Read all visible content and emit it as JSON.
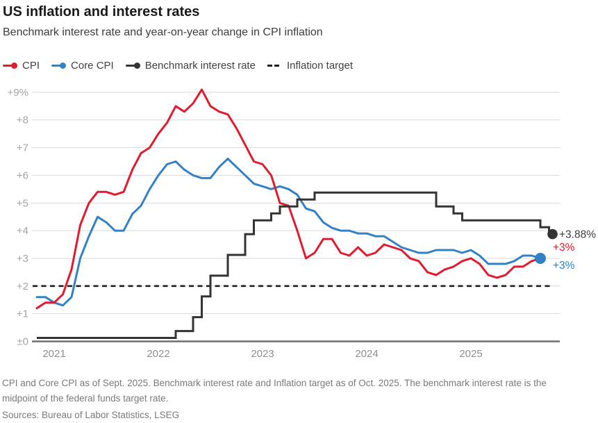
{
  "header": {
    "title": "US inflation and interest rates",
    "subtitle": "Benchmark interest rate and year-on-year change in CPI inflation"
  },
  "legend": [
    {
      "label": "CPI",
      "color": "#e11b2d",
      "marker": "line-dot"
    },
    {
      "label": "Core CPI",
      "color": "#3181c4",
      "marker": "line-dot"
    },
    {
      "label": "Benchmark interest rate",
      "color": "#333333",
      "marker": "line-dot"
    },
    {
      "label": "Inflation target",
      "color": "#1f1f1f",
      "marker": "dashes"
    }
  ],
  "chart_data": {
    "type": "line",
    "title": "US inflation and interest rates",
    "subtitle": "Benchmark interest rate and year-on-year change in CPI inflation",
    "x_start": "2020-11",
    "x_unit": "month",
    "start_offset_months": -2,
    "grid": true,
    "ylim": [
      0,
      9
    ],
    "target_value": 2,
    "colors": {
      "cpi": "#e11b2d",
      "core_cpi": "#3181c4",
      "benchmark": "#333333",
      "target": "#1f1f1f",
      "grid": "#d9d9d9",
      "axis": "#6e6e6e",
      "end_label_benchmark": "#3d3d3d"
    },
    "yticks": [
      {
        "v": 0,
        "label": "±0"
      },
      {
        "v": 1,
        "label": "+1"
      },
      {
        "v": 2,
        "label": "+2"
      },
      {
        "v": 3,
        "label": "+3"
      },
      {
        "v": 4,
        "label": "+4"
      },
      {
        "v": 5,
        "label": "+5"
      },
      {
        "v": 6,
        "label": "+6"
      },
      {
        "v": 7,
        "label": "+7"
      },
      {
        "v": 8,
        "label": "+8"
      },
      {
        "v": 9,
        "label": "+9%"
      }
    ],
    "xticks": [
      {
        "label": "2021",
        "t": 0
      },
      {
        "label": "2022",
        "t": 12
      },
      {
        "label": "2023",
        "t": 24
      },
      {
        "label": "2024",
        "t": 36
      },
      {
        "label": "2025",
        "t": 48
      }
    ],
    "series": [
      {
        "name": "CPI",
        "style": "line",
        "color": "#e11b2d",
        "end_label": "+3%",
        "end_dot": false,
        "values": [
          1.2,
          1.4,
          1.4,
          1.7,
          2.6,
          4.2,
          5.0,
          5.4,
          5.4,
          5.3,
          5.4,
          6.2,
          6.8,
          7.0,
          7.5,
          7.9,
          8.5,
          8.3,
          8.6,
          9.1,
          8.5,
          8.3,
          8.2,
          7.7,
          7.1,
          6.5,
          6.4,
          6.0,
          5.0,
          4.9,
          4.0,
          3.0,
          3.2,
          3.7,
          3.7,
          3.2,
          3.1,
          3.4,
          3.1,
          3.2,
          3.5,
          3.4,
          3.3,
          3.0,
          2.9,
          2.5,
          2.4,
          2.6,
          2.7,
          2.9,
          3.0,
          2.8,
          2.4,
          2.3,
          2.4,
          2.7,
          2.7,
          2.9,
          3.0
        ]
      },
      {
        "name": "Core CPI",
        "style": "line",
        "color": "#3181c4",
        "end_label": "+3%",
        "end_dot": true,
        "values": [
          1.6,
          1.6,
          1.4,
          1.3,
          1.6,
          3.0,
          3.8,
          4.5,
          4.3,
          4.0,
          4.0,
          4.6,
          4.9,
          5.5,
          6.0,
          6.4,
          6.5,
          6.2,
          6.0,
          5.9,
          5.9,
          6.3,
          6.6,
          6.3,
          6.0,
          5.7,
          5.6,
          5.5,
          5.6,
          5.5,
          5.3,
          4.8,
          4.7,
          4.3,
          4.1,
          4.0,
          4.0,
          3.9,
          3.9,
          3.8,
          3.8,
          3.6,
          3.4,
          3.3,
          3.2,
          3.2,
          3.3,
          3.3,
          3.3,
          3.2,
          3.3,
          3.1,
          2.8,
          2.8,
          2.8,
          2.9,
          3.1,
          3.1,
          3.0
        ]
      },
      {
        "name": "Benchmark interest rate",
        "style": "step",
        "color": "#333333",
        "end_label": "+3.88%",
        "end_dot": true,
        "values": [
          0.125,
          0.125,
          0.125,
          0.125,
          0.125,
          0.125,
          0.125,
          0.125,
          0.125,
          0.125,
          0.125,
          0.125,
          0.125,
          0.125,
          0.125,
          0.125,
          0.375,
          0.375,
          0.875,
          1.625,
          2.375,
          2.375,
          3.125,
          3.125,
          3.875,
          4.375,
          4.375,
          4.625,
          4.875,
          4.875,
          5.125,
          5.125,
          5.375,
          5.375,
          5.375,
          5.375,
          5.375,
          5.375,
          5.375,
          5.375,
          5.375,
          5.375,
          5.375,
          5.375,
          5.375,
          5.375,
          4.875,
          4.875,
          4.625,
          4.375,
          4.375,
          4.375,
          4.375,
          4.375,
          4.375,
          4.375,
          4.375,
          4.375,
          4.125,
          3.875
        ]
      },
      {
        "name": "Inflation target",
        "style": "dashed-constant",
        "color": "#1f1f1f",
        "value": 2
      }
    ]
  },
  "footer": {
    "note": "CPI and Core CPI as of Sept. 2025. Benchmark interest rate and Inflation target as of Oct. 2025. The benchmark interest rate is the midpoint of the federal funds target rate.",
    "source": "Sources: Bureau of Labor Statistics, LSEG"
  }
}
